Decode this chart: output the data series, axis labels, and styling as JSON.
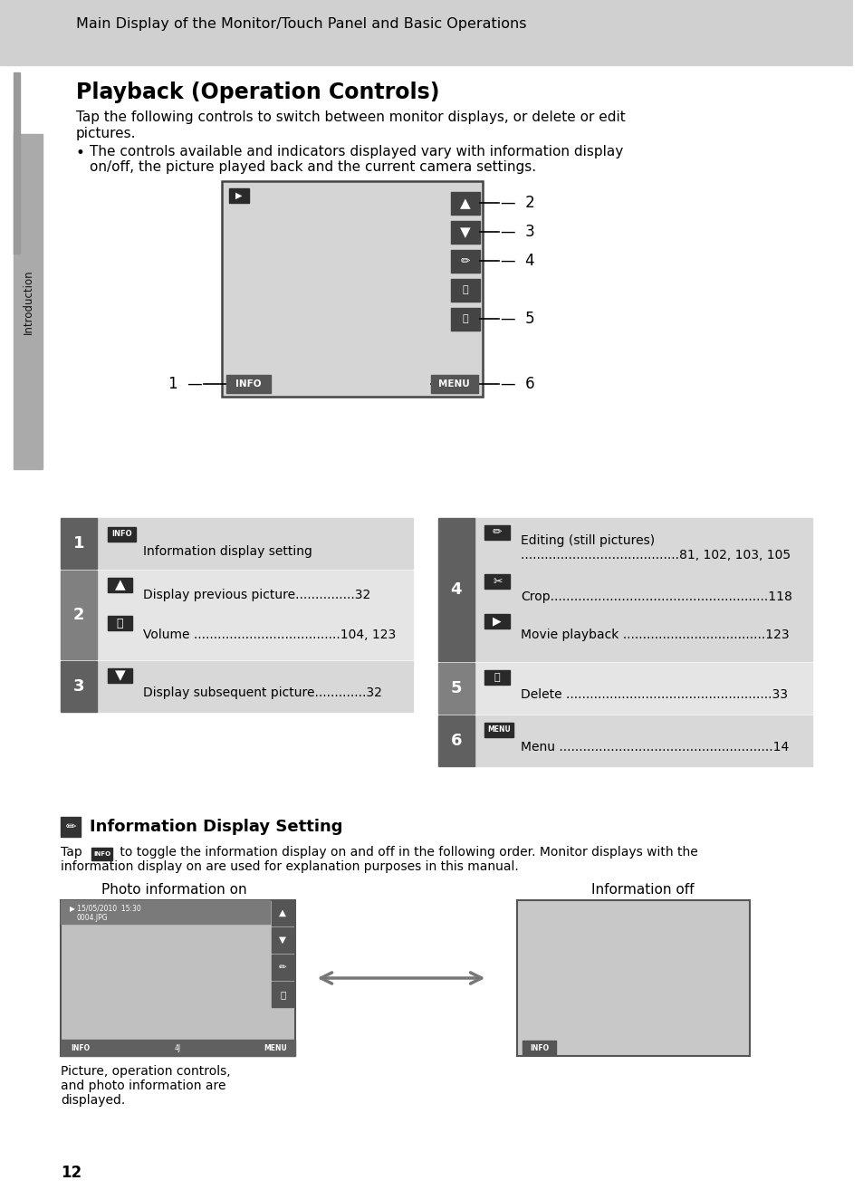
{
  "bg_color": "#ffffff",
  "header_bg": "#d0d0d0",
  "header_text": "Main Display of the Monitor/Touch Panel and Basic Operations",
  "title": "Playback (Operation Controls)",
  "intro1": "Tap the following controls to switch between monitor displays, or delete or edit",
  "intro2": "pictures.",
  "bullet": "The controls available and indicators displayed vary with information display",
  "bullet2": "on/off, the picture played back and the current camera settings.",
  "note_heading": "Information Display Setting",
  "note_text1": " to toggle the information display on and off in the following order. Monitor displays with the",
  "note_text2": "information display on are used for explanation purposes in this manual.",
  "photo_info_on_label": "Photo information on",
  "info_off_label": "Information off",
  "pic_caption1": "Picture, operation controls,",
  "pic_caption2": "and photo information are",
  "pic_caption3": "displayed.",
  "page_num": "12",
  "col_gray": "#606060",
  "row_gray": "#808080",
  "left_row1_text": "Information display setting",
  "left_row2_text1": "Display previous picture...............32",
  "left_row2_text2": "Volume .....................................104, 123",
  "left_row3_text": "Display subsequent picture.............32",
  "right_row4_text1": "Editing (still pictures)",
  "right_row4_text2": "........................................81, 102, 103, 105",
  "right_row4_text3": "Crop.......................................................118",
  "right_row4_text4": "Movie playback ....................................123",
  "right_row5_text": "Delete ....................................................33",
  "right_row6_text": "Menu ......................................................14"
}
